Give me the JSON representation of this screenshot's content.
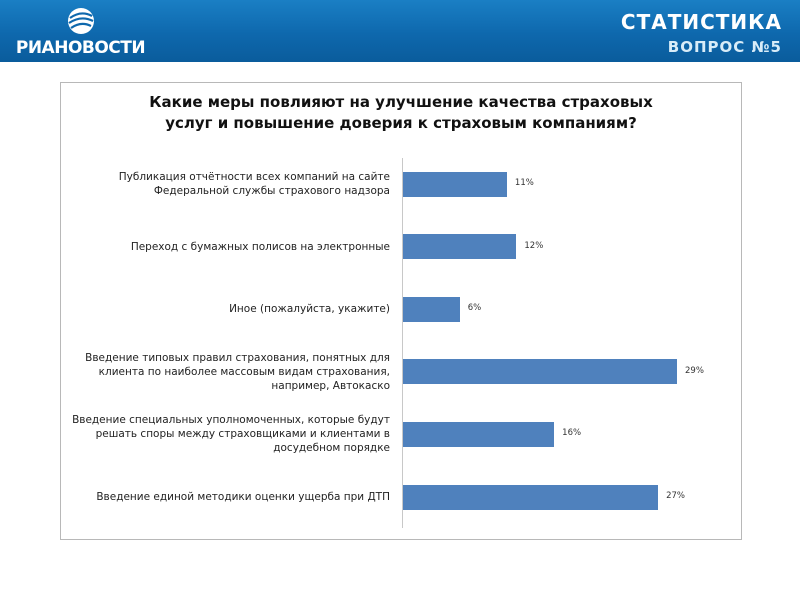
{
  "header": {
    "logo_text": "РИАНОВОСТИ",
    "title": "СТАТИСТИКА",
    "subtitle": "ВОПРОС №5",
    "brand_color": "#0e68ad"
  },
  "chart_data": {
    "type": "bar",
    "orientation": "horizontal",
    "title_lines": [
      "Какие меры повлияют на улучшение качества страховых",
      "услуг и повышение доверия к страховым компаниям?"
    ],
    "categories": [
      "Публикация отчётности всех компаний на сайте Федеральной службы страхового надзора",
      "Переход с бумажных полисов на электронные",
      "Иное (пожалуйста, укажите)",
      "Введение типовых правил страхования, понятных для клиента по наиболее массовым видам страхования, например, Автокаско",
      "Введение специальных уполномоченных, которые будут решать споры между страховщиками и клиентами в досудебном порядке",
      "Введение единой методики оценки ущерба при ДТП"
    ],
    "category_lines": [
      [
        "Публикация отчётности всех компаний на сайте",
        "Федеральной службы страхового надзора"
      ],
      [
        "Переход с бумажных полисов на электронные"
      ],
      [
        "Иное (пожалуйста, укажите)"
      ],
      [
        "Введение типовых правил страхования, понятных для",
        "клиента по наиболее массовым видам страхования,",
        "например, Автокаско"
      ],
      [
        "Введение специальных уполномоченных, которые будут",
        "решать споры между страховщиками и клиентами в",
        "досудебном порядке"
      ],
      [
        "Введение единой методики оценки ущерба при ДТП"
      ]
    ],
    "values": [
      11,
      12,
      6,
      29,
      16,
      27
    ],
    "value_labels": [
      "11%",
      "12%",
      "6%",
      "29%",
      "16%",
      "27%"
    ],
    "unit": "%",
    "bar_color": "#4f81bd",
    "xlim": [
      0,
      31
    ],
    "grid": false,
    "legend": "none"
  }
}
